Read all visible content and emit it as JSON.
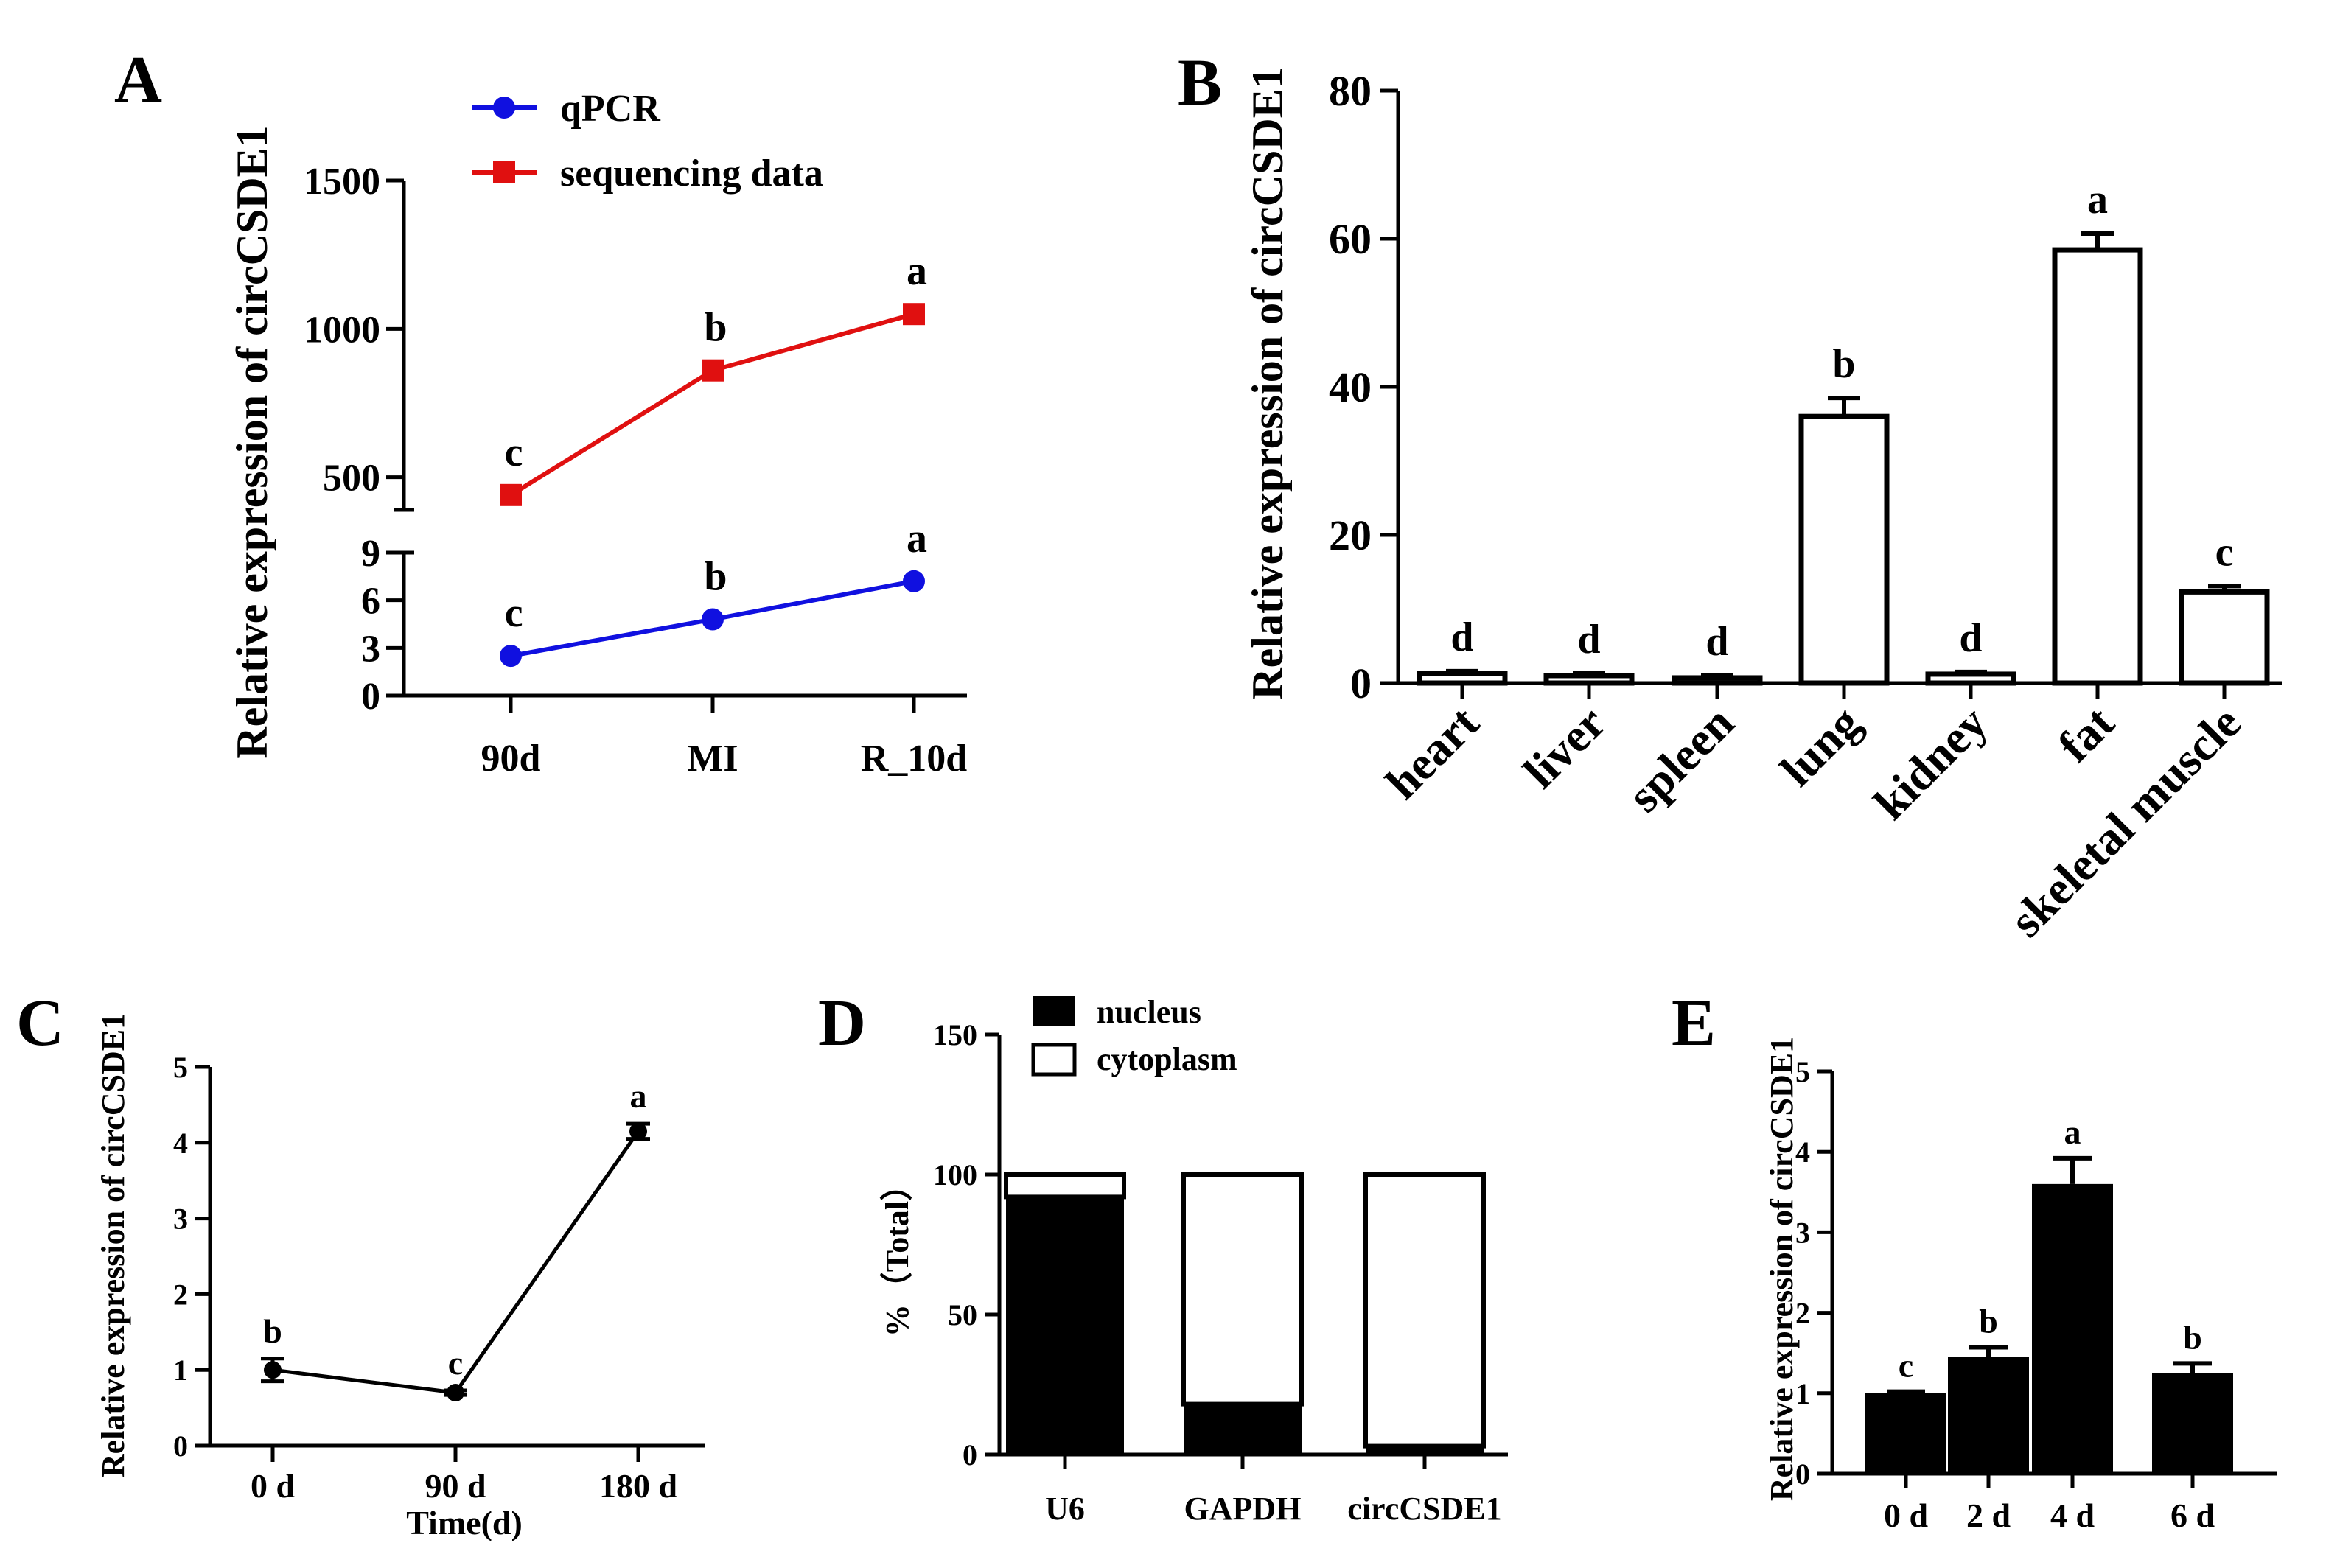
{
  "chart_data": [
    {
      "panel": "A",
      "type": "line",
      "ylabel": "Relative expression of circCSDE1",
      "categories": [
        "90d",
        "MI",
        "R_10d"
      ],
      "legend": [
        {
          "name": "qPCR",
          "color": "#1010e0",
          "marker": "circle"
        },
        {
          "name": "sequencing data",
          "color": "#e01010",
          "marker": "square"
        }
      ],
      "series": [
        {
          "name": "sequencing data",
          "values": [
            440,
            860,
            1050
          ],
          "letters": [
            "c",
            "b",
            "a"
          ],
          "color": "#e01010"
        },
        {
          "name": "qPCR",
          "values": [
            2.5,
            4.8,
            7.2
          ],
          "letters": [
            "c",
            "b",
            "a"
          ],
          "color": "#1010e0"
        }
      ],
      "upper_axis": {
        "ylim": [
          370,
          1500
        ],
        "ticks": [
          "500",
          "1000",
          "1500"
        ],
        "tick_values": [
          500,
          1000,
          1500
        ]
      },
      "lower_axis": {
        "ylim": [
          0,
          9
        ],
        "ticks": [
          "0",
          "3",
          "6",
          "9"
        ],
        "tick_values": [
          0,
          3,
          6,
          9
        ]
      }
    },
    {
      "panel": "B",
      "type": "bar",
      "ylabel": "Relative expression of circCSDE1",
      "categories": [
        "heart",
        "liver",
        "spleen",
        "lung",
        "kidney",
        "fat",
        "skeletal muscle"
      ],
      "values": [
        1.3,
        1.0,
        0.7,
        36.0,
        1.2,
        58.5,
        12.3
      ],
      "errors": [
        0.3,
        0.3,
        0.3,
        2.5,
        0.3,
        2.2,
        0.8
      ],
      "letters": [
        "d",
        "d",
        "d",
        "b",
        "d",
        "a",
        "c"
      ],
      "ylim": [
        0,
        80
      ],
      "ticks": [
        "0",
        "20",
        "40",
        "60",
        "80"
      ],
      "tick_values": [
        0,
        20,
        40,
        60,
        80
      ],
      "fill": "#ffffff"
    },
    {
      "panel": "C",
      "type": "line",
      "ylabel": "Relative expression of circCSDE1",
      "xlabel": "Time(d)",
      "categories": [
        "0 d",
        "90 d",
        "180 d"
      ],
      "values": [
        1.0,
        0.7,
        4.15
      ],
      "errors": [
        0.15,
        0.03,
        0.1
      ],
      "letters": [
        "b",
        "c",
        "a"
      ],
      "ylim": [
        0,
        5
      ],
      "ticks": [
        "0",
        "1",
        "2",
        "3",
        "4",
        "5"
      ],
      "tick_values": [
        0,
        1,
        2,
        3,
        4,
        5
      ]
    },
    {
      "panel": "D",
      "type": "bar",
      "stacked": true,
      "ylabel": "%（Total）",
      "categories": [
        "U6",
        "GAPDH",
        "circCSDE1"
      ],
      "series": [
        {
          "name": "nucleus",
          "values": [
            92,
            18,
            3
          ],
          "color": "#000000"
        },
        {
          "name": "cytoplasm",
          "values": [
            8,
            82,
            97
          ],
          "color": "#ffffff"
        }
      ],
      "legend": [
        {
          "name": "nucleus",
          "color": "#000000"
        },
        {
          "name": "cytoplasm",
          "color": "#ffffff"
        }
      ],
      "ylim": [
        0,
        150
      ],
      "ticks": [
        "0",
        "50",
        "100",
        "150"
      ],
      "tick_values": [
        0,
        50,
        100,
        150
      ]
    },
    {
      "panel": "E",
      "type": "bar",
      "ylabel": "Relative expression of circCSDE1",
      "categories": [
        "0 d",
        "2 d",
        "4 d",
        "6 d"
      ],
      "values": [
        1.0,
        1.45,
        3.6,
        1.25
      ],
      "errors": [
        0.02,
        0.12,
        0.32,
        0.12
      ],
      "letters": [
        "c",
        "b",
        "a",
        "b"
      ],
      "ylim": [
        0,
        5
      ],
      "ticks": [
        "0",
        "1",
        "2",
        "3",
        "4",
        "5"
      ],
      "tick_values": [
        0,
        1,
        2,
        3,
        4,
        5
      ],
      "fill": "#000000"
    }
  ]
}
